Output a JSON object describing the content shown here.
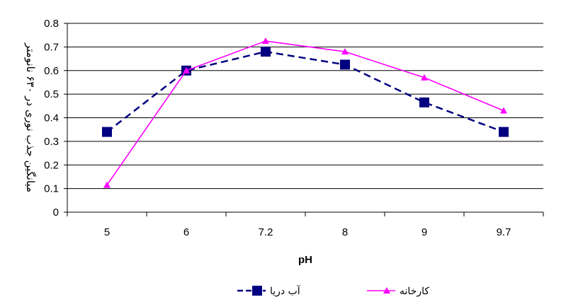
{
  "chart_data": {
    "type": "line",
    "categories": [
      "5",
      "6",
      "7.2",
      "8",
      "9",
      "9.7"
    ],
    "xlabel": "pH",
    "ylabel": "میانگین جذب نوری در ۶۳۰ نانومتر",
    "ylim": [
      0,
      0.8
    ],
    "yticks": [
      "0",
      "0.1",
      "0.2",
      "0.3",
      "0.4",
      "0.5",
      "0.6",
      "0.7",
      "0.8"
    ],
    "grid": true,
    "legend_position": "bottom",
    "series": [
      {
        "name": "آب دریا",
        "values": [
          0.34,
          0.6,
          0.68,
          0.625,
          0.465,
          0.34
        ],
        "color": "#000080",
        "line_style": "dashed",
        "marker": "square"
      },
      {
        "name": "کارخانه",
        "values": [
          0.115,
          0.6,
          0.725,
          0.68,
          0.57,
          0.43
        ],
        "color": "#ff00ff",
        "line_style": "solid",
        "marker": "triangle"
      }
    ]
  }
}
